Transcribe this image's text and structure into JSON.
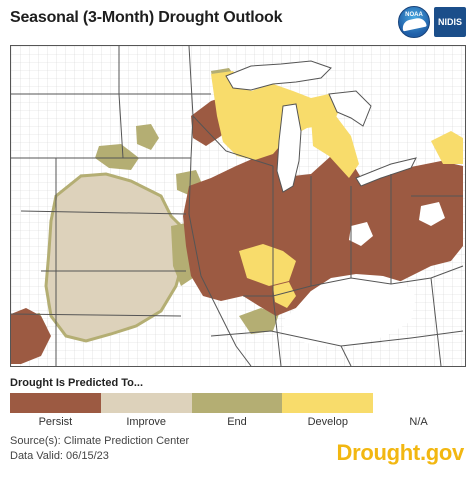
{
  "title": "Seasonal (3-Month) Drought Outlook",
  "logos": {
    "noaa": "NOAA",
    "nidis": "NIDIS"
  },
  "legend": {
    "title": "Drought Is Predicted To...",
    "items": [
      {
        "label": "Persist",
        "color": "#9c5a42"
      },
      {
        "label": "Improve",
        "color": "#ddd2bb"
      },
      {
        "label": "End",
        "color": "#b4ae73"
      },
      {
        "label": "Develop",
        "color": "#f8dc6b"
      },
      {
        "label": "N/A",
        "color": "#ffffff"
      }
    ]
  },
  "source": "Source(s): Climate Prediction Center",
  "valid": "Data Valid: 06/15/23",
  "brand": "Drought.gov",
  "colors": {
    "water": "#ffffff",
    "boundary": "#555555",
    "county": "#cfcfcf"
  }
}
